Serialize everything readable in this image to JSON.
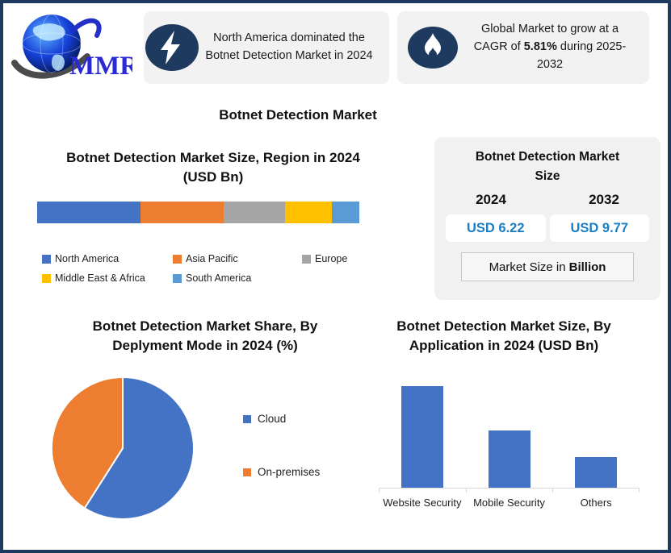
{
  "theme": {
    "border_navy": "#1e3a5f",
    "panel_gray": "#f2f2f2",
    "value_blue": "#1b7ec3"
  },
  "logo": {
    "brand": "MMR",
    "icon": "globe-icon"
  },
  "highlights": [
    {
      "icon": "lightning-bolt-icon",
      "text": "North America dominated the Botnet Detection Market in 2024"
    },
    {
      "icon": "flame-icon",
      "text_prefix": "Global Market to grow at a CAGR of ",
      "text_bold": "5.81%",
      "text_suffix": " during 2025-2032"
    }
  ],
  "page_title": "Botnet Detection Market",
  "market_size_panel": {
    "title": "Botnet Detection Market Size",
    "years": [
      "2024",
      "2032"
    ],
    "values": [
      "USD 6.22",
      "USD 9.77"
    ],
    "note_prefix": "Market Size in",
    "note_bold": "Billion"
  },
  "chart_data": [
    {
      "type": "stacked-bar",
      "title": "Botnet Detection Market Size, Region in 2024 (USD Bn)",
      "title_lines": [
        "Botnet Detection Market Size, Region in 2024",
        "(USD Bn)"
      ],
      "unit": "percent of total bar width (estimated from pixels)",
      "series": [
        {
          "name": "North America",
          "value": 32,
          "color": "#4472C4"
        },
        {
          "name": "Asia Pacific",
          "value": 26,
          "color": "#ED7D31"
        },
        {
          "name": "Europe",
          "value": 19,
          "color": "#A5A5A5"
        },
        {
          "name": "Middle East & Africa",
          "value": 14.5,
          "color": "#FFC000"
        },
        {
          "name": "South America",
          "value": 8.5,
          "color": "#5B9BD5"
        }
      ],
      "legend_position": "bottom"
    },
    {
      "type": "pie",
      "title": "Botnet Detection Market Share, By Deplyment Mode in 2024 (%)",
      "title_lines": [
        "Botnet Detection Market Share, By",
        "Deplyment Mode in 2024 (%)"
      ],
      "start_angle_deg": 0,
      "direction": "clockwise",
      "series": [
        {
          "name": "Cloud",
          "value": 59,
          "color": "#4472C4"
        },
        {
          "name": "On-premises",
          "value": 41,
          "color": "#ED7D31"
        }
      ],
      "legend_position": "right"
    },
    {
      "type": "bar",
      "title": "Botnet Detection Market Size, By Application in 2024 (USD Bn)",
      "title_lines": [
        "Botnet Detection Market Size, By",
        "Application in 2024 (USD Bn)"
      ],
      "categories": [
        "Website Security",
        "Mobile Security",
        "Others"
      ],
      "values": [
        2.5,
        1.4,
        0.75
      ],
      "ylabel": "USD Bn",
      "bar_color": "#4472C4",
      "grid": false,
      "ylim": [
        0,
        2.5
      ]
    }
  ]
}
